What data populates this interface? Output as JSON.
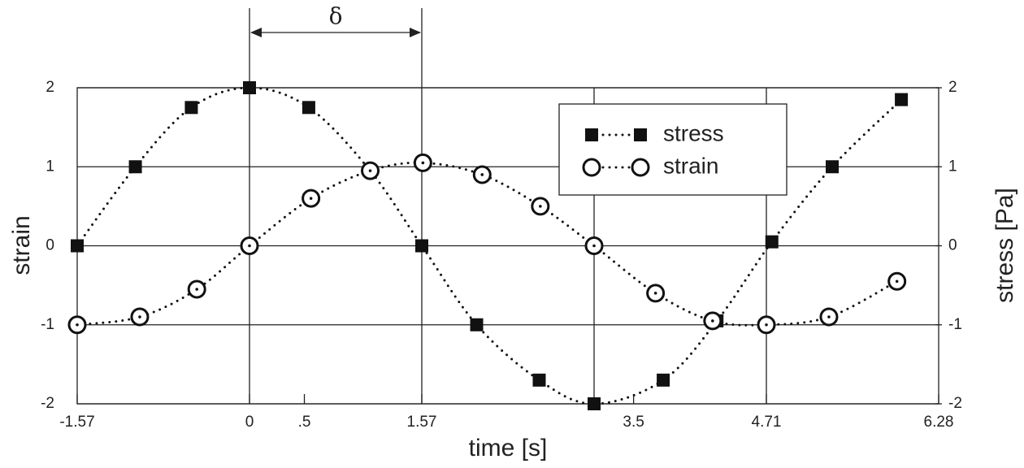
{
  "chart_data": {
    "type": "scatter",
    "x_label": "time [s]",
    "y_label": "strain",
    "y2_label": "stress [Pa]",
    "xlim": [
      -1.57,
      6.28
    ],
    "xticks": [
      -1.57,
      0,
      {
        "value": 0.5,
        "label": ".5"
      },
      1.57,
      3.5,
      4.71,
      6.28
    ],
    "xgrid": [
      0,
      1.57,
      3.14,
      4.71
    ],
    "ylim": [
      -2,
      2
    ],
    "yticks": [
      -2,
      -1,
      0,
      1,
      2
    ],
    "y2lim": [
      -2,
      2
    ],
    "y2ticks": [
      -2,
      -1,
      0,
      1,
      2
    ],
    "grid": true,
    "legend": "upper right",
    "annotation": {
      "text": "δ",
      "x": [
        0,
        1.57
      ]
    },
    "series": [
      {
        "name": "stress",
        "axis": "y2",
        "marker": "square",
        "color": "#111111",
        "x": [
          -1.57,
          -1.04,
          -0.53,
          0,
          0.54,
          1.1,
          1.57,
          2.07,
          2.64,
          3.14,
          3.77,
          4.26,
          4.76,
          5.31,
          5.94
        ],
        "values": [
          0,
          1,
          1.75,
          2,
          1.75,
          0.95,
          0,
          -1,
          -1.7,
          -2,
          -1.7,
          -0.95,
          0.05,
          1,
          1.85
        ]
      },
      {
        "name": "strain",
        "marker": "circle",
        "color": "#111111",
        "x": [
          -1.57,
          -1.0,
          -0.48,
          0,
          0.56,
          1.1,
          1.58,
          2.12,
          2.65,
          3.14,
          3.7,
          4.22,
          4.71,
          5.28,
          5.9
        ],
        "values": [
          -1,
          -0.9,
          -0.55,
          0,
          0.6,
          0.95,
          1.05,
          0.9,
          0.5,
          0,
          -0.6,
          -0.95,
          -1,
          -0.9,
          -0.45
        ]
      }
    ]
  }
}
